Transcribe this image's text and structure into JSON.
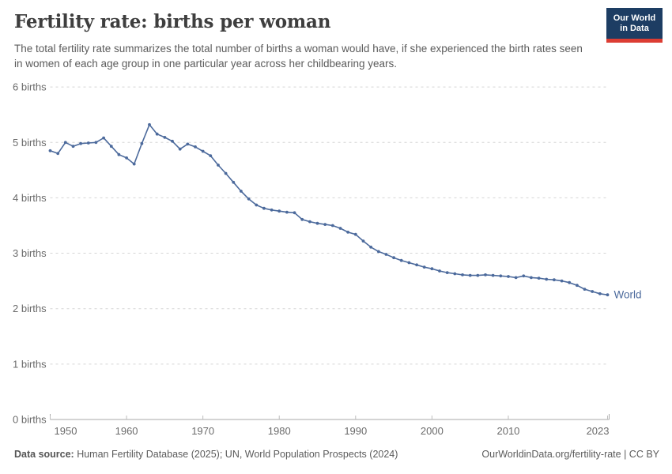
{
  "header": {
    "title": "Fertility rate: births per woman",
    "subtitle": "The total fertility rate summarizes the total number of births a woman would have, if she experienced the birth rates seen in women of each age group in one particular year across her childbearing years.",
    "logo": {
      "line1": "Our World",
      "line2": "in Data",
      "bg_color": "#1d3d63",
      "accent_color": "#dc3d33"
    }
  },
  "chart_data": {
    "type": "line",
    "title": "Fertility rate: births per woman",
    "ylabel": "births",
    "xlabel": "",
    "xlim": [
      1950,
      2023
    ],
    "ylim": [
      0,
      6
    ],
    "grid": "horizontal-dashed",
    "x_start": 1950,
    "x_end": 2023,
    "x_ticks": [
      1950,
      1960,
      1970,
      1980,
      1990,
      2000,
      2010,
      2023
    ],
    "y_tick_labels": [
      "0 births",
      "1 births",
      "2 births",
      "3 births",
      "4 births",
      "5 births",
      "6 births"
    ],
    "series": [
      {
        "name": "World",
        "color": "#4C6A9C",
        "end_label": "World",
        "values": [
          4.85,
          4.8,
          5.0,
          4.93,
          4.98,
          4.99,
          5.0,
          5.08,
          4.93,
          4.78,
          4.72,
          4.61,
          4.98,
          5.32,
          5.15,
          5.09,
          5.02,
          4.88,
          4.97,
          4.92,
          4.84,
          4.76,
          4.59,
          4.44,
          4.28,
          4.12,
          3.98,
          3.87,
          3.81,
          3.78,
          3.76,
          3.74,
          3.73,
          3.61,
          3.57,
          3.54,
          3.52,
          3.5,
          3.45,
          3.38,
          3.34,
          3.22,
          3.11,
          3.03,
          2.98,
          2.92,
          2.87,
          2.83,
          2.79,
          2.75,
          2.72,
          2.68,
          2.65,
          2.63,
          2.61,
          2.6,
          2.6,
          2.61,
          2.6,
          2.59,
          2.58,
          2.56,
          2.59,
          2.56,
          2.55,
          2.53,
          2.52,
          2.5,
          2.47,
          2.42,
          2.35,
          2.31,
          2.27,
          2.25
        ]
      }
    ]
  },
  "footer": {
    "source_label": "Data source:",
    "source_text": " Human Fertility Database (2025); UN, World Population Prospects (2024)",
    "link_text": "OurWorldinData.org/fertility-rate | CC BY"
  }
}
